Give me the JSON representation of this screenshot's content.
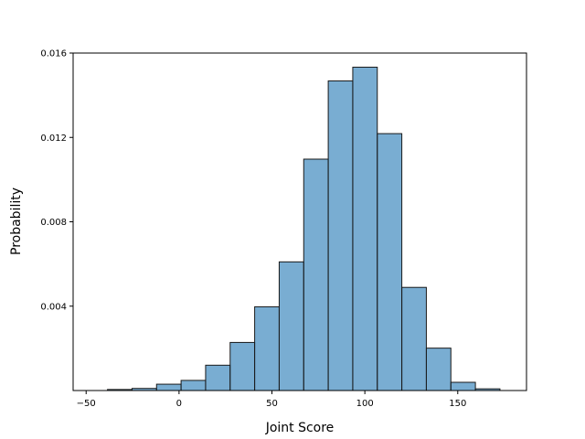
{
  "chart_data": {
    "type": "bar",
    "histogram": true,
    "xlabel": "Joint Score",
    "ylabel": "Probability",
    "xlim": [
      -57,
      187
    ],
    "ylim": [
      0,
      0.016
    ],
    "xticks": [
      -50,
      0,
      50,
      100,
      150
    ],
    "xtick_labels": [
      "−50",
      "0",
      "50",
      "100",
      "150"
    ],
    "yticks": [
      0.004,
      0.008,
      0.012,
      0.016
    ],
    "ytick_labels": [
      "0.004",
      "0.008",
      "0.012",
      "0.016"
    ],
    "bins": [
      {
        "x0": -38.5,
        "x1": -25.3,
        "value": 5e-05
      },
      {
        "x0": -25.3,
        "x1": -12.1,
        "value": 0.0001
      },
      {
        "x0": -12.1,
        "x1": 1.1,
        "value": 0.0003
      },
      {
        "x0": 1.1,
        "x1": 14.3,
        "value": 0.00048
      },
      {
        "x0": 14.3,
        "x1": 27.5,
        "value": 0.0012
      },
      {
        "x0": 27.5,
        "x1": 40.7,
        "value": 0.00228
      },
      {
        "x0": 40.7,
        "x1": 53.9,
        "value": 0.00397
      },
      {
        "x0": 53.9,
        "x1": 67.1,
        "value": 0.0061
      },
      {
        "x0": 67.1,
        "x1": 80.3,
        "value": 0.01097
      },
      {
        "x0": 80.3,
        "x1": 93.5,
        "value": 0.01468
      },
      {
        "x0": 93.5,
        "x1": 106.7,
        "value": 0.01533
      },
      {
        "x0": 106.7,
        "x1": 119.9,
        "value": 0.01218
      },
      {
        "x0": 119.9,
        "x1": 133.1,
        "value": 0.00489
      },
      {
        "x0": 133.1,
        "x1": 146.3,
        "value": 0.00201
      },
      {
        "x0": 146.3,
        "x1": 159.5,
        "value": 0.00039
      },
      {
        "x0": 159.5,
        "x1": 172.7,
        "value": 8e-05
      }
    ],
    "bar_color": "#1f77b4",
    "bar_alpha": 0.6,
    "grid": false,
    "legend": "none"
  }
}
